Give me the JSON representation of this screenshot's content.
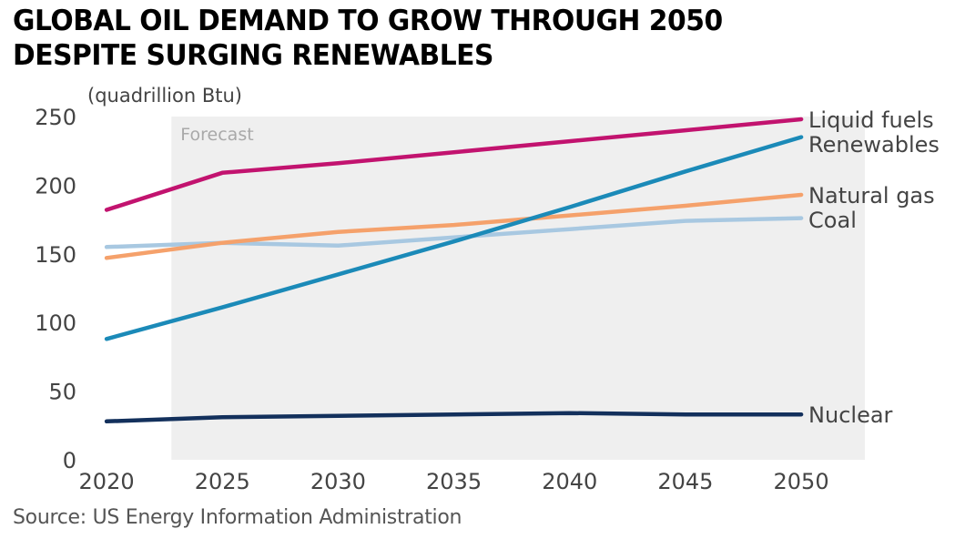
{
  "title_lines": [
    "GLOBAL OIL DEMAND TO GROW THROUGH 2050",
    "DESPITE SURGING RENEWABLES"
  ],
  "source": "Source: US Energy Information Administration",
  "colors": {
    "forecast_band": "#efefef",
    "axis_text": "#444444",
    "label_text": "#444444",
    "forecast_text": "#a9a9a9"
  },
  "chart_data": {
    "type": "line",
    "ylabel": "(quadrillion Btu)",
    "xlabel": "",
    "x": [
      2020,
      2025,
      2030,
      2035,
      2040,
      2045,
      2050
    ],
    "xlim": [
      2019.25,
      2052.75
    ],
    "ylim": [
      0,
      250
    ],
    "yticks": [
      0,
      50,
      100,
      150,
      200,
      250
    ],
    "xticks": [
      2020,
      2025,
      2030,
      2035,
      2040,
      2045,
      2050
    ],
    "grid": false,
    "forecast": {
      "label": "Forecast",
      "start": 2022.8
    },
    "series": [
      {
        "name": "Liquid fuels",
        "color": "#c2136f",
        "values": [
          182,
          209,
          216,
          224,
          232,
          240,
          248
        ]
      },
      {
        "name": "Renewables",
        "color": "#1b8ab8",
        "values": [
          88,
          111,
          135,
          159,
          184,
          210,
          235
        ]
      },
      {
        "name": "Natural gas",
        "color": "#f5a16b",
        "values": [
          147,
          158,
          166,
          171,
          178,
          185,
          193
        ]
      },
      {
        "name": "Coal",
        "color": "#a8c8e1",
        "values": [
          155,
          158,
          156,
          162,
          168,
          174,
          176
        ]
      },
      {
        "name": "Nuclear",
        "color": "#13305c",
        "values": [
          28,
          31,
          32,
          33,
          34,
          33,
          33
        ]
      }
    ]
  }
}
